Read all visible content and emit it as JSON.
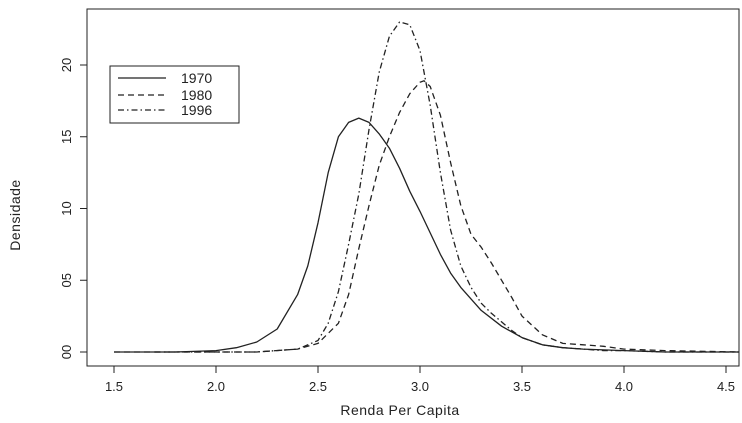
{
  "chart_data": {
    "type": "line",
    "title": "",
    "xlabel": "Renda Per Capita",
    "ylabel": "Densidade",
    "xlim": [
      1.35,
      4.6
    ],
    "ylim": [
      0,
      2.35
    ],
    "x_ticks": [
      1.5,
      2.0,
      2.5,
      3.0,
      3.5,
      4.0,
      4.5
    ],
    "x_tick_labels": [
      "1.5",
      "2.0",
      "2.5",
      "3.0",
      "3.5",
      "4.0",
      "4.5"
    ],
    "y_ticks": [
      0,
      0.5,
      1.0,
      1.5,
      2.0
    ],
    "y_tick_labels": [
      "00",
      "05",
      "10",
      "15",
      "20"
    ],
    "grid": false,
    "legend_position": "top-left",
    "series": [
      {
        "name": "1970",
        "style": "solid",
        "color": "#222222",
        "x": [
          1.5,
          1.8,
          2.0,
          2.1,
          2.2,
          2.3,
          2.4,
          2.45,
          2.5,
          2.55,
          2.6,
          2.65,
          2.7,
          2.75,
          2.8,
          2.85,
          2.9,
          2.95,
          3.0,
          3.05,
          3.1,
          3.15,
          3.2,
          3.3,
          3.4,
          3.5,
          3.6,
          3.7,
          3.8,
          4.0,
          4.2,
          4.6
        ],
        "y": [
          0,
          0,
          0.01,
          0.03,
          0.07,
          0.16,
          0.4,
          0.6,
          0.9,
          1.25,
          1.5,
          1.6,
          1.63,
          1.6,
          1.52,
          1.42,
          1.28,
          1.12,
          0.98,
          0.83,
          0.68,
          0.55,
          0.45,
          0.29,
          0.18,
          0.1,
          0.05,
          0.03,
          0.02,
          0.01,
          0,
          0
        ]
      },
      {
        "name": "1980",
        "style": "dashed",
        "color": "#222222",
        "x": [
          1.5,
          1.8,
          2.2,
          2.4,
          2.5,
          2.6,
          2.65,
          2.7,
          2.75,
          2.8,
          2.85,
          2.9,
          2.95,
          3.0,
          3.02,
          3.05,
          3.1,
          3.15,
          3.2,
          3.25,
          3.3,
          3.35,
          3.4,
          3.45,
          3.5,
          3.6,
          3.7,
          3.8,
          3.9,
          4.0,
          4.2,
          4.6
        ],
        "y": [
          0,
          0,
          0,
          0.02,
          0.06,
          0.2,
          0.4,
          0.72,
          1.02,
          1.3,
          1.5,
          1.67,
          1.8,
          1.88,
          1.89,
          1.85,
          1.65,
          1.32,
          1.02,
          0.82,
          0.73,
          0.62,
          0.5,
          0.38,
          0.25,
          0.12,
          0.06,
          0.05,
          0.04,
          0.02,
          0.01,
          0
        ]
      },
      {
        "name": "1996",
        "style": "dashdot",
        "color": "#222222",
        "x": [
          1.7,
          2.2,
          2.4,
          2.5,
          2.55,
          2.6,
          2.65,
          2.7,
          2.75,
          2.8,
          2.85,
          2.9,
          2.95,
          3.0,
          3.05,
          3.1,
          3.15,
          3.2,
          3.25,
          3.3,
          3.35,
          3.4,
          3.45,
          3.5,
          3.6,
          3.7,
          3.8,
          3.9,
          4.0,
          4.2,
          4.6
        ],
        "y": [
          0,
          0,
          0.02,
          0.08,
          0.2,
          0.42,
          0.75,
          1.1,
          1.55,
          1.95,
          2.2,
          2.3,
          2.28,
          2.1,
          1.72,
          1.25,
          0.85,
          0.6,
          0.45,
          0.34,
          0.27,
          0.21,
          0.15,
          0.1,
          0.05,
          0.03,
          0.02,
          0.01,
          0.01,
          0,
          0
        ]
      }
    ]
  }
}
